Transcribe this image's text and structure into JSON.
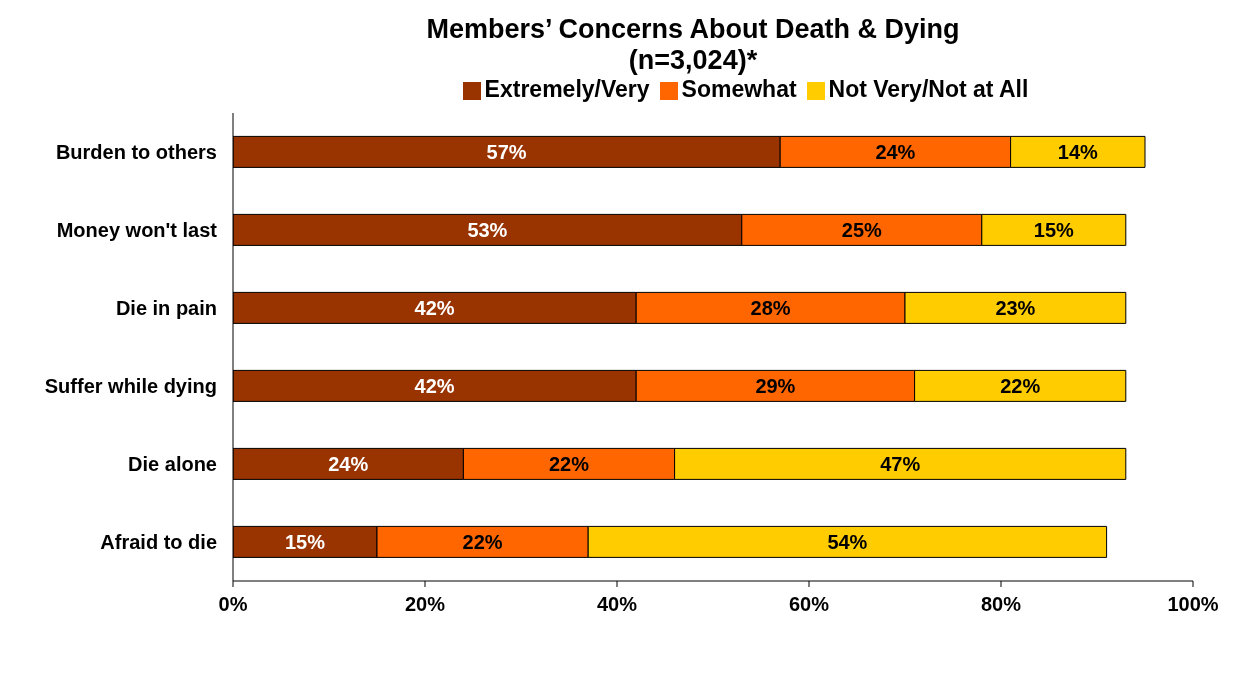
{
  "chart_data": {
    "type": "bar",
    "orientation": "horizontal",
    "stacked": true,
    "title": "Members’ Concerns About Death & Dying",
    "subtitle": "(n=3,024)*",
    "categories": [
      "Burden to others",
      "Money won't last",
      "Die in pain",
      "Suffer while dying",
      "Die alone",
      "Afraid to die"
    ],
    "series": [
      {
        "name": "Extremely/Very",
        "color": "#993300",
        "values": [
          57,
          53,
          42,
          42,
          24,
          15
        ],
        "value_labels": [
          "57%",
          "53%",
          "42%",
          "42%",
          "24%",
          "15%"
        ]
      },
      {
        "name": "Somewhat",
        "color": "#ff6600",
        "values": [
          24,
          25,
          28,
          29,
          22,
          22
        ],
        "value_labels": [
          "24%",
          "25%",
          "28%",
          "29%",
          "22%",
          "22%"
        ]
      },
      {
        "name": "Not Very/Not at All",
        "color": "#ffcc00",
        "values": [
          14,
          15,
          23,
          22,
          47,
          54
        ],
        "value_labels": [
          "14%",
          "15%",
          "23%",
          "22%",
          "47%",
          "54%"
        ]
      }
    ],
    "xlim": [
      0,
      100
    ],
    "xticks": [
      {
        "value": 0,
        "label": "0%"
      },
      {
        "value": 20,
        "label": "20%"
      },
      {
        "value": 40,
        "label": "40%"
      },
      {
        "value": 60,
        "label": "60%"
      },
      {
        "value": 80,
        "label": "80%"
      },
      {
        "value": 100,
        "label": "100%"
      }
    ],
    "legend": "top",
    "grid": false
  }
}
